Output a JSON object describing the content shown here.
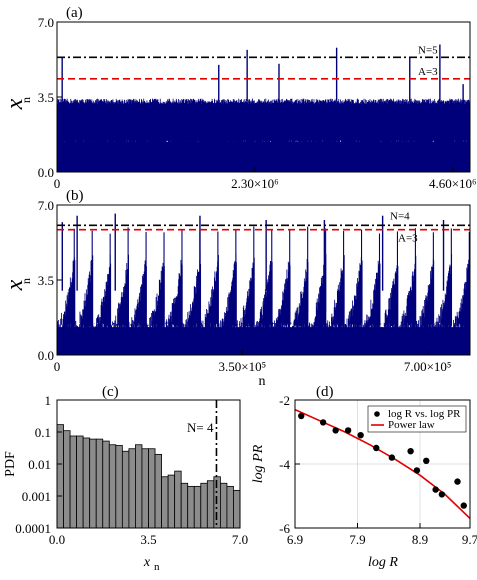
{
  "chart_data": [
    {
      "type": "line",
      "panel": "(a)",
      "ylabel": "x",
      "ylabel_sub": "n",
      "xlim": [
        0,
        4800000
      ],
      "ylim": [
        0,
        7
      ],
      "xticks": [
        0,
        2300000,
        4600000
      ],
      "xtick_labels": [
        "0",
        "2.30×10⁶",
        "4.60×10⁶"
      ],
      "yticks": [
        0,
        3.5,
        7
      ],
      "ytick_labels": [
        "0.0",
        "3.5",
        "7.0"
      ],
      "thresholds": [
        {
          "label": "N=5",
          "value": 5.35,
          "color": "#000000",
          "style": "dashdot"
        },
        {
          "label": "A=3",
          "value": 4.35,
          "color": "#e00000",
          "style": "dashed"
        }
      ],
      "series": [
        {
          "color": "#00007a",
          "baseline": [
            0,
            3.3
          ],
          "spikes": [
            {
              "x": 60000,
              "y": 5.35
            },
            {
              "x": 1880000,
              "y": 5.0
            },
            {
              "x": 2210000,
              "y": 5.7
            },
            {
              "x": 2580000,
              "y": 5.05
            },
            {
              "x": 3250000,
              "y": 5.8
            },
            {
              "x": 4100000,
              "y": 5.35
            },
            {
              "x": 4450000,
              "y": 5.95
            },
            {
              "x": 4720000,
              "y": 4.1
            }
          ]
        }
      ]
    },
    {
      "type": "line",
      "panel": "(b)",
      "ylabel": "x",
      "ylabel_sub": "n",
      "xlim": [
        0,
        780000
      ],
      "ylim": [
        0,
        7
      ],
      "xticks": [
        0,
        350000,
        700000
      ],
      "xtick_labels": [
        "0",
        "3.50×10⁵",
        "7.00×10⁵"
      ],
      "yticks": [
        0,
        3.5,
        7
      ],
      "ytick_labels": [
        "0.0",
        "3.5",
        "7.0"
      ],
      "thresholds": [
        {
          "label": "N=4",
          "value": 6.05,
          "color": "#000000",
          "style": "dashdot"
        },
        {
          "label": "A=3",
          "value": 5.85,
          "color": "#e00000",
          "style": "dashed"
        }
      ],
      "series": [
        {
          "color": "#00007a",
          "cycles": 23,
          "spikes": [
            {
              "x": 10000,
              "y": 6.2
            },
            {
              "x": 38000,
              "y": 6.5
            },
            {
              "x": 110000,
              "y": 6.6
            },
            {
              "x": 270000,
              "y": 6.5
            },
            {
              "x": 395000,
              "y": 6.3
            },
            {
              "x": 505000,
              "y": 6.3
            },
            {
              "x": 615000,
              "y": 6.5
            },
            {
              "x": 730000,
              "y": 6.3
            }
          ]
        }
      ],
      "xlabel": "n"
    },
    {
      "type": "bar",
      "panel": "(c)",
      "ylabel": "PDF",
      "xlabel": "x",
      "xlabel_sub": "n",
      "yscale": "log",
      "xlim": [
        0,
        7
      ],
      "ylim": [
        0.0001,
        1
      ],
      "xticks": [
        0,
        3.5,
        7
      ],
      "xtick_labels": [
        "0.0",
        "3.5",
        "7.0"
      ],
      "yticks": [
        0.0001,
        0.001,
        0.01,
        0.1,
        1
      ],
      "ytick_labels": [
        "0.0001",
        "0.001",
        "0.01",
        "0.1",
        "1"
      ],
      "bin_width": 0.25,
      "bin_edges_start": 0,
      "values": [
        0.17,
        0.11,
        0.075,
        0.075,
        0.065,
        0.06,
        0.06,
        0.052,
        0.04,
        0.038,
        0.025,
        0.03,
        0.04,
        0.03,
        0.03,
        0.02,
        0.004,
        0.0045,
        0.006,
        0.0025,
        0.002,
        0.002,
        0.0025,
        0.003,
        0.004,
        0.0025,
        0.002,
        0.0015
      ],
      "threshold": {
        "label": "N= 4",
        "value": 6.1,
        "color": "#000000",
        "style": "dashdot"
      }
    },
    {
      "type": "scatter",
      "panel": "(d)",
      "xlabel": "log R",
      "ylabel": "log PR",
      "xlim": [
        6.9,
        9.7
      ],
      "ylim": [
        -6,
        -2
      ],
      "xticks": [
        6.9,
        7.9,
        8.9,
        9.7
      ],
      "xtick_labels": [
        "6.9",
        "7.9",
        "8.9",
        "9.7"
      ],
      "yticks": [
        -6,
        -4,
        -2
      ],
      "ytick_labels": [
        "-6",
        "-4",
        "-2"
      ],
      "grid": true,
      "legend_position": "top-right",
      "series": [
        {
          "name": "log R vs. log PR",
          "kind": "points",
          "color": "#000000",
          "x": [
            7.0,
            7.35,
            7.55,
            7.75,
            7.95,
            8.2,
            8.45,
            8.75,
            8.85,
            9.0,
            9.15,
            9.25,
            9.5,
            9.6
          ],
          "y": [
            -2.5,
            -2.7,
            -2.95,
            -2.95,
            -3.1,
            -3.5,
            -3.8,
            -3.6,
            -4.2,
            -3.9,
            -4.8,
            -4.95,
            -4.55,
            -5.3
          ]
        },
        {
          "name": "Power law",
          "kind": "line",
          "color": "#e00000",
          "x": [
            6.9,
            7.3,
            7.7,
            8.1,
            8.5,
            8.9,
            9.3,
            9.7
          ],
          "y": [
            -2.3,
            -2.65,
            -3.0,
            -3.4,
            -3.85,
            -4.35,
            -4.95,
            -5.7
          ]
        }
      ]
    }
  ]
}
